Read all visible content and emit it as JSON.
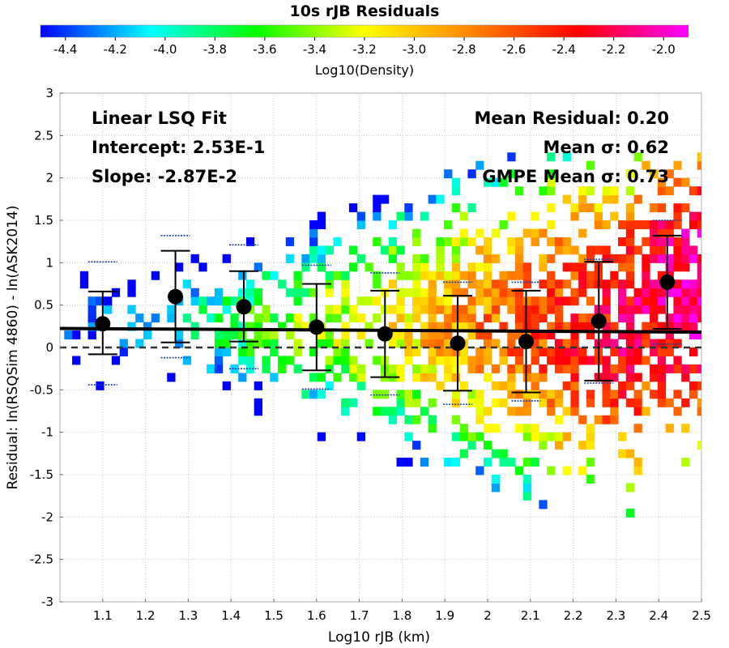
{
  "chart_data": {
    "type": "heatmap",
    "title": "10s rJB Residuals",
    "xlabel": "Log10 rJB (km)",
    "ylabel": "Residual: ln(RSQSim 4860) - ln(ASK2014)",
    "xlim": [
      1.0,
      2.5
    ],
    "ylim": [
      -3,
      3
    ],
    "x_ticks": [
      "1.1",
      "1.2",
      "1.3",
      "1.4",
      "1.5",
      "1.6",
      "1.7",
      "1.8",
      "1.9",
      "2",
      "2.1",
      "2.2",
      "2.3",
      "2.4",
      "2.5"
    ],
    "y_ticks": [
      "3",
      "2.5",
      "2",
      "1.5",
      "1",
      "0.5",
      "0",
      "-0.5",
      "-1",
      "-1.5",
      "-2",
      "-2.5",
      "-3"
    ],
    "grid": true,
    "colorbar": {
      "label": "Log10(Density)",
      "min": -4.5,
      "max": -1.9,
      "ticks": [
        "-4.4",
        "-4.2",
        "-4.0",
        "-3.8",
        "-3.6",
        "-3.4",
        "-3.2",
        "-3.0",
        "-2.8",
        "-2.6",
        "-2.4",
        "-2.2",
        "-2.0"
      ],
      "colors": [
        "#0000ff",
        "#00ffff",
        "#00ff00",
        "#ffff00",
        "#ff8000",
        "#ff0000",
        "#ff00ff"
      ]
    },
    "annotations_left": [
      "Linear LSQ Fit",
      "Intercept: 2.53E-1",
      "Slope: -2.87E-2"
    ],
    "annotations_right": [
      "Mean Residual: 0.20",
      "Mean σ: 0.62",
      "GMPE Mean σ: 0.73"
    ],
    "fit_line": {
      "intercept": 0.253,
      "slope": -0.0287
    },
    "binned_means": [
      {
        "x": 1.1,
        "y": 0.28,
        "low": -0.08,
        "high": 0.66,
        "gmpe_low": -0.44,
        "gmpe_high": 1.01
      },
      {
        "x": 1.27,
        "y": 0.6,
        "low": 0.06,
        "high": 1.14,
        "gmpe_low": -0.12,
        "gmpe_high": 1.32
      },
      {
        "x": 1.43,
        "y": 0.48,
        "low": 0.07,
        "high": 0.9,
        "gmpe_low": -0.25,
        "gmpe_high": 1.21
      },
      {
        "x": 1.6,
        "y": 0.24,
        "low": -0.27,
        "high": 0.75,
        "gmpe_low": -0.49,
        "gmpe_high": 0.97
      },
      {
        "x": 1.76,
        "y": 0.16,
        "low": -0.35,
        "high": 0.67,
        "gmpe_low": -0.56,
        "gmpe_high": 0.88
      },
      {
        "x": 1.93,
        "y": 0.05,
        "low": -0.51,
        "high": 0.61,
        "gmpe_low": -0.67,
        "gmpe_high": 0.77
      },
      {
        "x": 2.09,
        "y": 0.07,
        "low": -0.53,
        "high": 0.67,
        "gmpe_low": -0.63,
        "gmpe_high": 0.77
      },
      {
        "x": 2.26,
        "y": 0.31,
        "low": -0.39,
        "high": 1.01,
        "gmpe_low": -0.42,
        "gmpe_high": 1.04
      },
      {
        "x": 2.42,
        "y": 0.77,
        "low": 0.22,
        "high": 1.32,
        "gmpe_low": 0.04,
        "gmpe_high": 1.5
      }
    ]
  }
}
